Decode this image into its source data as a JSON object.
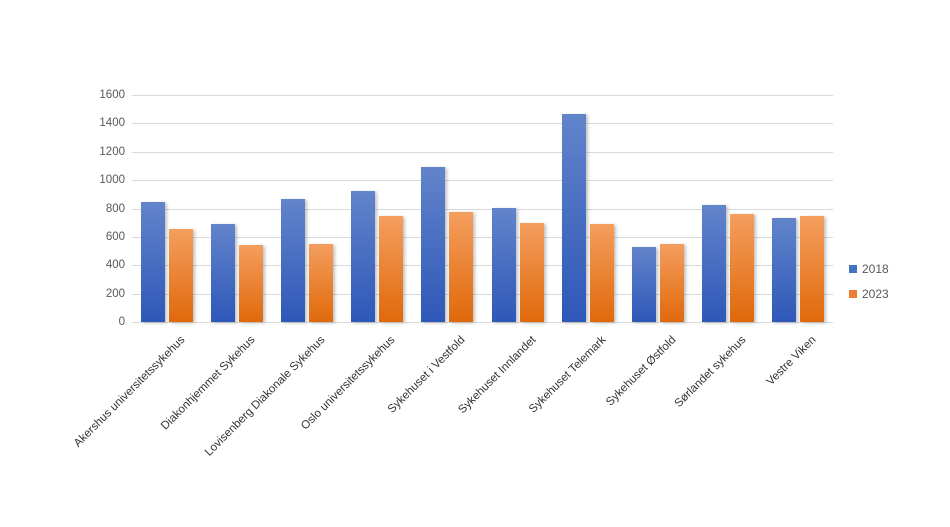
{
  "chart_data": {
    "type": "bar",
    "title": "",
    "xlabel": "",
    "ylabel": "",
    "categories": [
      "Akershus universitetssykehus",
      "Diakonhjemmet Sykehus",
      "Lovisenberg Diakonale Sykehus",
      "Oslo universitetssykehus",
      "Sykehuset i Vestfold",
      "Sykehuset Innlandet",
      "Sykehuset Telemark",
      "Sykehuset Østfold",
      "Sørlandet sykehus",
      "Vestre Viken"
    ],
    "series": [
      {
        "name": "2018",
        "color": "#4472C4",
        "gradient_top": "#6284CB",
        "gradient_bottom": "#2E58B8",
        "values": [
          845,
          690,
          865,
          925,
          1095,
          805,
          1465,
          530,
          825,
          735
        ]
      },
      {
        "name": "2023",
        "color": "#ED7D31",
        "gradient_top": "#F49E5E",
        "gradient_bottom": "#E0690B",
        "values": [
          655,
          540,
          550,
          750,
          775,
          695,
          690,
          550,
          760,
          745
        ]
      }
    ],
    "ylim": [
      0,
      1600
    ],
    "yticks": [
      0,
      200,
      400,
      600,
      800,
      1000,
      1200,
      1400,
      1600
    ],
    "grid": "horizontal",
    "gridline_color": "#D9D9D9",
    "axis_tick_color": "#595959",
    "category_label_color": "#333333",
    "legend_position": "right",
    "background": "#FFFFFF"
  }
}
